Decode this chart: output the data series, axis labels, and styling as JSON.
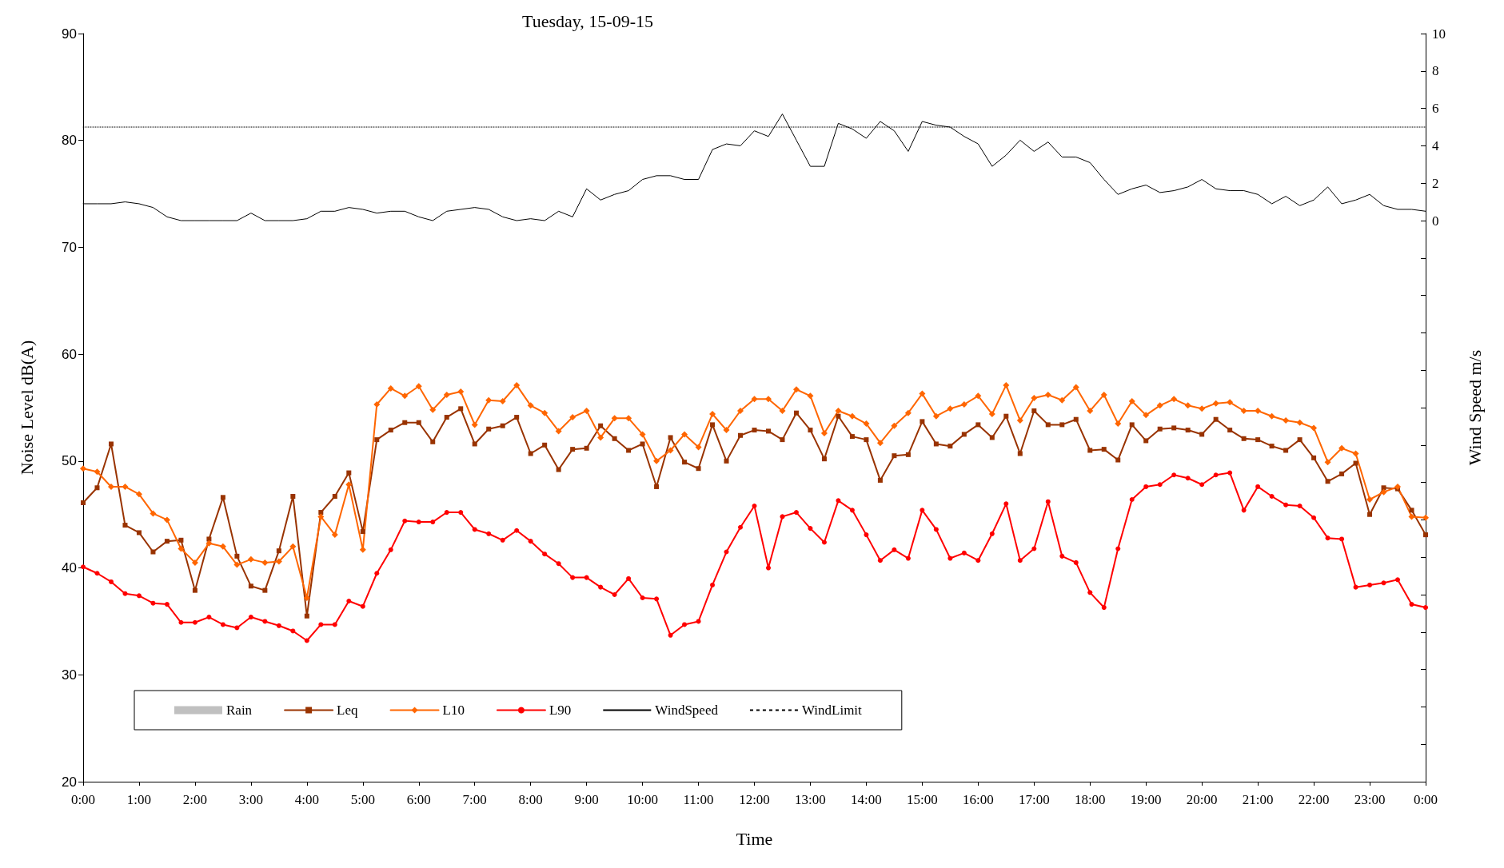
{
  "chart_data": {
    "type": "line",
    "title": "Tuesday, 15-09-15",
    "xlabel": "Time",
    "ylabel": "Noise Level dB(A)",
    "y2label": "Wind Speed m/s",
    "x": [
      0,
      0.25,
      0.5,
      0.75,
      1,
      1.25,
      1.5,
      1.75,
      2,
      2.25,
      2.5,
      2.75,
      3,
      3.25,
      3.5,
      3.75,
      4,
      4.25,
      4.5,
      4.75,
      5,
      5.25,
      5.5,
      5.75,
      6,
      6.25,
      6.5,
      6.75,
      7,
      7.25,
      7.5,
      7.75,
      8,
      8.25,
      8.5,
      8.75,
      9,
      9.25,
      9.5,
      9.75,
      10,
      10.25,
      10.5,
      10.75,
      11,
      11.25,
      11.5,
      11.75,
      12,
      12.25,
      12.5,
      12.75,
      13,
      13.25,
      13.5,
      13.75,
      14,
      14.25,
      14.5,
      14.75,
      15,
      15.25,
      15.5,
      15.75,
      16,
      16.25,
      16.5,
      16.75,
      17,
      17.25,
      17.5,
      17.75,
      18,
      18.25,
      18.5,
      18.75,
      19,
      19.25,
      19.5,
      19.75,
      20,
      20.25,
      20.5,
      20.75,
      21,
      21.25,
      21.5,
      21.75,
      22,
      22.25,
      22.5,
      22.75,
      23,
      23.25,
      23.5,
      23.75,
      24
    ],
    "xlim": [
      0,
      24
    ],
    "xticks": [
      {
        "value": 0,
        "label": "0:00"
      },
      {
        "value": 1,
        "label": "1:00"
      },
      {
        "value": 2,
        "label": "2:00"
      },
      {
        "value": 3,
        "label": "3:00"
      },
      {
        "value": 4,
        "label": "4:00"
      },
      {
        "value": 5,
        "label": "5:00"
      },
      {
        "value": 6,
        "label": "6:00"
      },
      {
        "value": 7,
        "label": "7:00"
      },
      {
        "value": 8,
        "label": "8:00"
      },
      {
        "value": 9,
        "label": "9:00"
      },
      {
        "value": 10,
        "label": "10:00"
      },
      {
        "value": 11,
        "label": "11:00"
      },
      {
        "value": 12,
        "label": "12:00"
      },
      {
        "value": 13,
        "label": "13:00"
      },
      {
        "value": 14,
        "label": "14:00"
      },
      {
        "value": 15,
        "label": "15:00"
      },
      {
        "value": 16,
        "label": "16:00"
      },
      {
        "value": 17,
        "label": "17:00"
      },
      {
        "value": 18,
        "label": "18:00"
      },
      {
        "value": 19,
        "label": "19:00"
      },
      {
        "value": 20,
        "label": "20:00"
      },
      {
        "value": 21,
        "label": "21:00"
      },
      {
        "value": 22,
        "label": "22:00"
      },
      {
        "value": 23,
        "label": "23:00"
      },
      {
        "value": 24,
        "label": "0:00"
      }
    ],
    "ylim": [
      20,
      90
    ],
    "yticks": [
      20,
      30,
      40,
      50,
      60,
      70,
      80,
      90
    ],
    "y2lim": [
      -30,
      10
    ],
    "y2ticks": [
      {
        "value": -30,
        "label": null
      },
      {
        "value": -28,
        "label": null
      },
      {
        "value": -26,
        "label": null
      },
      {
        "value": -24,
        "label": null
      },
      {
        "value": -22,
        "label": null
      },
      {
        "value": -20,
        "label": null
      },
      {
        "value": -18,
        "label": null
      },
      {
        "value": -16,
        "label": null
      },
      {
        "value": -14,
        "label": null
      },
      {
        "value": -12,
        "label": null
      },
      {
        "value": -10,
        "label": null
      },
      {
        "value": -8,
        "label": null
      },
      {
        "value": -6,
        "label": null
      },
      {
        "value": -4,
        "label": null
      },
      {
        "value": -2,
        "label": null
      },
      0,
      2,
      4,
      6,
      8,
      10
    ],
    "grid": false,
    "legend": "bottom left",
    "series": [
      {
        "name": "Rain",
        "type": "bar",
        "color": "#c0c0c0",
        "values": [
          null,
          null,
          null,
          null,
          null,
          null,
          null,
          null,
          null,
          null,
          null,
          null,
          null,
          null,
          null,
          null,
          null,
          null,
          null,
          null,
          null,
          null,
          null,
          null,
          null,
          null,
          null,
          null,
          null,
          null,
          null,
          null,
          null,
          null,
          null,
          null,
          null,
          null,
          null,
          null,
          null,
          null,
          null,
          null,
          null,
          null,
          null,
          null,
          null,
          null,
          null,
          null,
          null,
          null,
          null,
          null,
          null,
          null,
          null,
          null,
          null,
          null,
          null,
          null,
          null,
          null,
          null,
          null,
          null,
          null,
          null,
          null,
          null,
          null,
          null,
          null,
          null,
          null,
          null,
          null,
          null,
          null,
          null,
          null,
          null,
          null,
          null,
          null,
          null,
          null,
          null,
          null,
          null,
          null,
          null,
          null,
          null
        ]
      },
      {
        "name": "Leq",
        "color": "#993300",
        "marker": "square",
        "values": [
          46.1,
          47.5,
          51.6,
          44.0,
          43.3,
          41.5,
          42.5,
          42.6,
          37.9,
          42.7,
          46.6,
          41.1,
          38.3,
          37.9,
          41.6,
          46.7,
          35.5,
          45.2,
          46.7,
          48.9,
          43.4,
          52.0,
          52.9,
          53.6,
          53.6,
          51.8,
          54.1,
          54.9,
          51.6,
          53.0,
          53.3,
          54.1,
          50.7,
          51.5,
          49.2,
          51.1,
          51.2,
          53.3,
          52.1,
          51.0,
          51.6,
          47.6,
          52.2,
          49.9,
          49.3,
          53.4,
          50.0,
          52.4,
          52.9,
          52.8,
          52.0,
          54.5,
          52.9,
          50.2,
          54.2,
          52.3,
          52.0,
          48.2,
          50.5,
          50.6,
          53.7,
          51.6,
          51.4,
          52.5,
          53.4,
          52.2,
          54.2,
          50.7,
          54.7,
          53.4,
          53.4,
          53.9,
          51.0,
          51.1,
          50.1,
          53.4,
          51.9,
          53.0,
          53.1,
          52.9,
          52.5,
          53.9,
          52.9,
          52.1,
          52.0,
          51.4,
          51.0,
          52.0,
          50.3,
          48.1,
          48.8,
          49.8,
          45.0,
          47.5,
          47.4,
          45.4,
          43.1
        ]
      },
      {
        "name": "L10",
        "color": "#ff6600",
        "marker": "diamond",
        "values": [
          49.3,
          49.0,
          47.6,
          47.6,
          46.9,
          45.1,
          44.5,
          41.8,
          40.5,
          42.3,
          42.0,
          40.3,
          40.8,
          40.5,
          40.6,
          42.0,
          37.2,
          44.8,
          43.1,
          47.8,
          41.7,
          55.3,
          56.8,
          56.1,
          57.0,
          54.8,
          56.2,
          56.5,
          53.4,
          55.7,
          55.6,
          57.1,
          55.2,
          54.5,
          52.8,
          54.1,
          54.7,
          52.2,
          54.0,
          54.0,
          52.5,
          50.0,
          51.0,
          52.5,
          51.3,
          54.4,
          52.9,
          54.7,
          55.8,
          55.8,
          54.7,
          56.7,
          56.1,
          52.6,
          54.7,
          54.2,
          53.5,
          51.7,
          53.3,
          54.5,
          56.3,
          54.2,
          54.9,
          55.3,
          56.1,
          54.4,
          57.1,
          53.8,
          55.9,
          56.2,
          55.7,
          56.9,
          54.7,
          56.2,
          53.5,
          55.6,
          54.3,
          55.2,
          55.8,
          55.2,
          54.9,
          55.4,
          55.5,
          54.7,
          54.7,
          54.2,
          53.8,
          53.6,
          53.1,
          49.9,
          51.2,
          50.7,
          46.4,
          47.1,
          47.6,
          44.8,
          44.7
        ]
      },
      {
        "name": "L90",
        "color": "#ff0000",
        "marker": "circle",
        "values": [
          40.1,
          39.5,
          38.7,
          37.6,
          37.4,
          36.7,
          36.6,
          34.9,
          34.9,
          35.4,
          34.7,
          34.4,
          35.4,
          35.0,
          34.6,
          34.1,
          33.2,
          34.7,
          34.7,
          36.9,
          36.4,
          39.5,
          41.7,
          44.4,
          44.3,
          44.3,
          45.2,
          45.2,
          43.6,
          43.2,
          42.6,
          43.5,
          42.5,
          41.3,
          40.4,
          39.1,
          39.1,
          38.2,
          37.5,
          39.0,
          37.2,
          37.1,
          33.7,
          34.7,
          35.0,
          38.4,
          41.5,
          43.8,
          45.8,
          40.0,
          44.8,
          45.2,
          43.7,
          42.4,
          46.3,
          45.4,
          43.1,
          40.7,
          41.7,
          40.9,
          45.4,
          43.6,
          40.9,
          41.4,
          40.7,
          43.2,
          46.0,
          40.7,
          41.8,
          46.2,
          41.1,
          40.5,
          37.7,
          36.3,
          41.8,
          46.4,
          47.6,
          47.8,
          48.7,
          48.4,
          47.8,
          48.7,
          48.9,
          45.4,
          47.6,
          46.7,
          45.9,
          45.8,
          44.7,
          42.8,
          42.7,
          38.2,
          38.4,
          38.6,
          38.9,
          36.6,
          36.3
        ]
      },
      {
        "name": "WindSpeed",
        "color": "#000000",
        "marker": "none",
        "axis": "y2",
        "values": [
          0.9,
          0.9,
          0.9,
          1.0,
          0.9,
          0.7,
          0.2,
          0.0,
          0.0,
          0.0,
          0.0,
          0.0,
          0.4,
          0.0,
          0.0,
          0.0,
          0.1,
          0.5,
          0.5,
          0.7,
          0.6,
          0.4,
          0.5,
          0.5,
          0.2,
          0.0,
          0.5,
          0.6,
          0.7,
          0.6,
          0.2,
          0.0,
          0.1,
          0.0,
          0.5,
          0.2,
          1.7,
          1.1,
          1.4,
          1.6,
          2.2,
          2.4,
          2.4,
          2.2,
          2.2,
          3.8,
          4.1,
          4.0,
          4.8,
          4.5,
          5.7,
          4.3,
          2.9,
          2.9,
          5.2,
          4.9,
          4.4,
          5.3,
          4.8,
          3.7,
          5.3,
          5.1,
          5.0,
          4.5,
          4.1,
          2.9,
          3.5,
          4.3,
          3.7,
          4.2,
          3.4,
          3.4,
          3.1,
          2.2,
          1.4,
          1.7,
          1.9,
          1.5,
          1.6,
          1.8,
          2.2,
          1.7,
          1.6,
          1.6,
          1.4,
          0.9,
          1.3,
          0.8,
          1.1,
          1.8,
          0.9,
          1.1,
          1.4,
          0.8,
          0.6,
          0.6,
          0.5
        ]
      },
      {
        "name": "WindLimit",
        "color": "#000000",
        "marker": "none",
        "line_style": "dotted",
        "axis": "y2",
        "x": [
          0,
          24
        ],
        "values": [
          5,
          5
        ]
      }
    ]
  }
}
